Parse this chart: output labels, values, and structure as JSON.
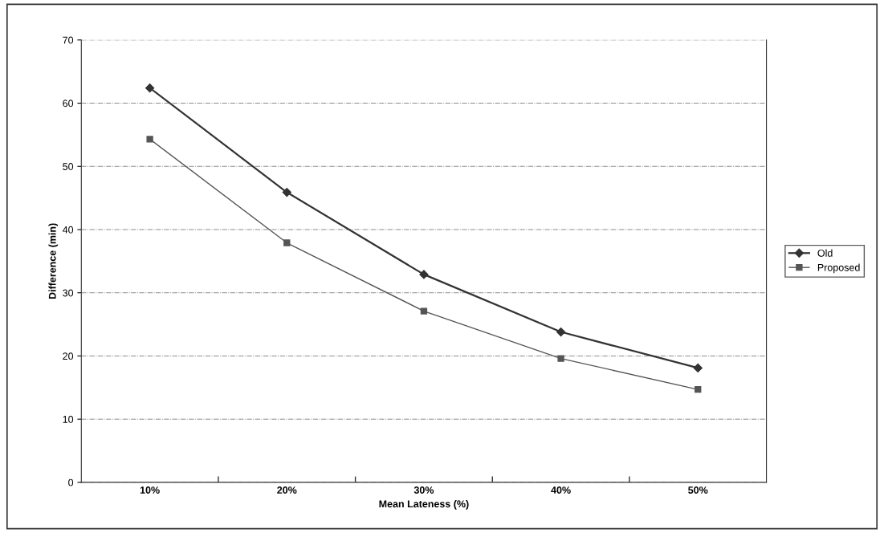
{
  "chart_data": {
    "type": "line",
    "xlabel": "Mean Lateness (%)",
    "ylabel": "Difference (min)",
    "categories": [
      "10%",
      "20%",
      "30%",
      "40%",
      "50%"
    ],
    "series": [
      {
        "name": "Old",
        "color": "#333333",
        "marker": "diamond",
        "values": [
          62.4,
          45.9,
          32.9,
          23.8,
          18.1
        ]
      },
      {
        "name": "Proposed",
        "color": "#555555",
        "marker": "square",
        "values": [
          54.3,
          37.9,
          27.1,
          19.6,
          14.7
        ]
      }
    ],
    "ylim": [
      0,
      70
    ],
    "yticks": [
      0,
      10,
      20,
      30,
      40,
      50,
      60,
      70
    ],
    "grid": "y",
    "legend": "right",
    "line_style": "solid"
  }
}
